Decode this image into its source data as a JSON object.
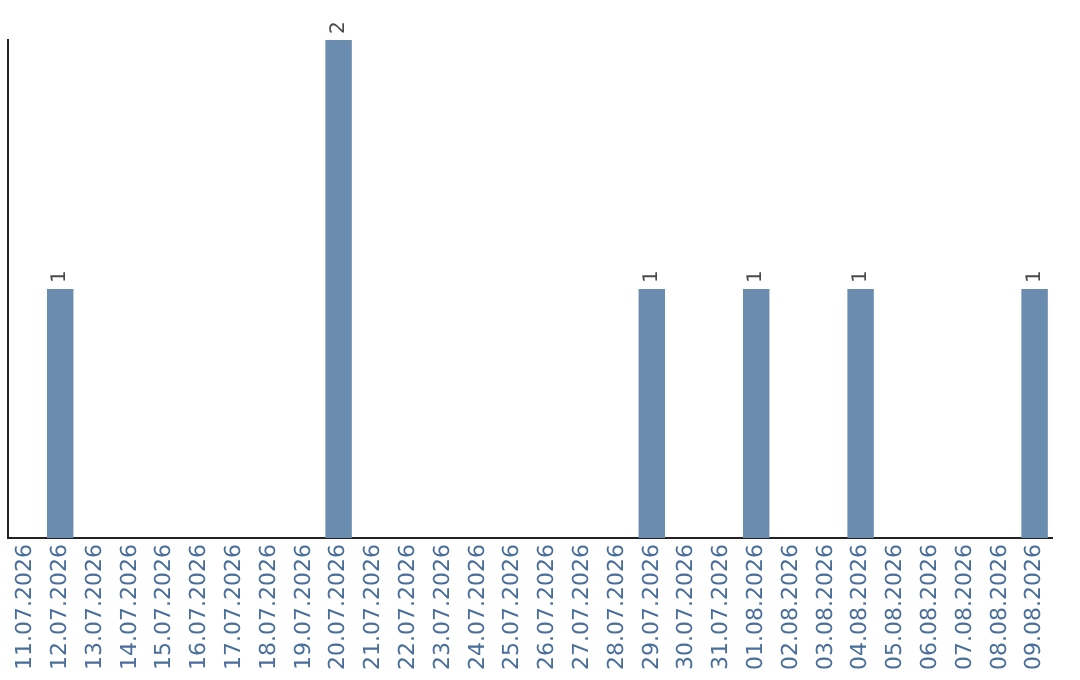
{
  "chart_data": {
    "type": "bar",
    "categories": [
      "11.07.2026",
      "12.07.2026",
      "13.07.2026",
      "14.07.2026",
      "15.07.2026",
      "16.07.2026",
      "17.07.2026",
      "18.07.2026",
      "19.07.2026",
      "20.07.2026",
      "21.07.2026",
      "22.07.2026",
      "23.07.2026",
      "24.07.2026",
      "25.07.2026",
      "26.07.2026",
      "27.07.2026",
      "28.07.2026",
      "29.07.2026",
      "30.07.2026",
      "31.07.2026",
      "01.08.2026",
      "02.08.2026",
      "03.08.2026",
      "04.08.2026",
      "05.08.2026",
      "06.08.2026",
      "07.08.2026",
      "08.08.2026",
      "09.08.2026"
    ],
    "values": [
      0,
      1,
      0,
      0,
      0,
      0,
      0,
      0,
      0,
      2,
      0,
      0,
      0,
      0,
      0,
      0,
      0,
      0,
      1,
      0,
      0,
      1,
      0,
      0,
      1,
      0,
      0,
      0,
      0,
      1
    ],
    "value_labels": [
      null,
      "1",
      null,
      null,
      null,
      null,
      null,
      null,
      null,
      "2",
      null,
      null,
      null,
      null,
      null,
      null,
      null,
      null,
      "1",
      null,
      null,
      "1",
      null,
      null,
      "1",
      null,
      null,
      null,
      null,
      "1"
    ],
    "color": "#6a8caf",
    "grid": false,
    "legend": false,
    "tick_labels": "x"
  }
}
